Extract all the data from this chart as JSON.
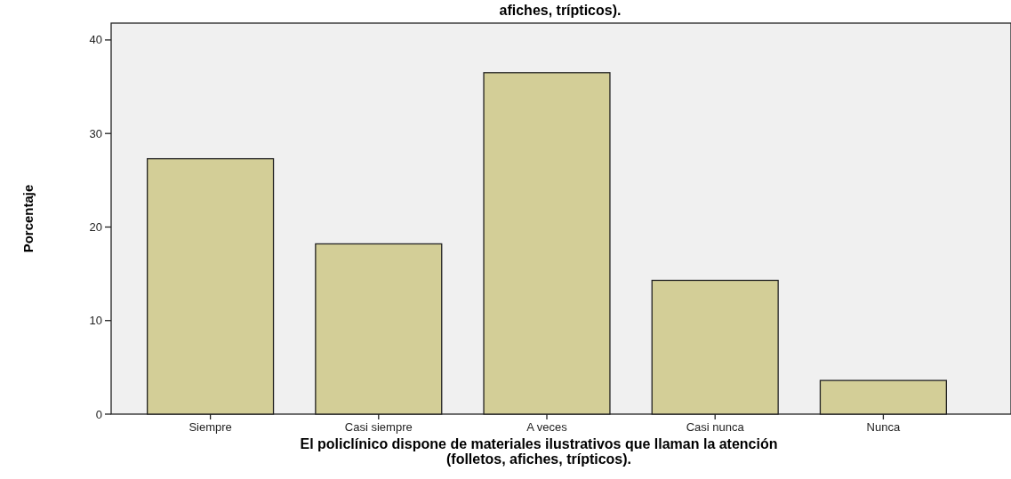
{
  "chart_data": {
    "type": "bar",
    "title": "afiches, trípticos).",
    "categories": [
      "Siempre",
      "Casi siempre",
      "A veces",
      "Casi nunca",
      "Nunca"
    ],
    "values": [
      27.3,
      18.2,
      36.5,
      14.3,
      3.6
    ],
    "color": "#d3ce97",
    "xlabel": "El policlínico dispone de materiales ilustrativos que llaman la atención\n(folletos, afiches, trípticos).",
    "ylabel": "Porcentaje",
    "ylim": [
      0,
      41.8
    ],
    "yticks": [
      0,
      10,
      20,
      30,
      40
    ],
    "grid": false
  }
}
